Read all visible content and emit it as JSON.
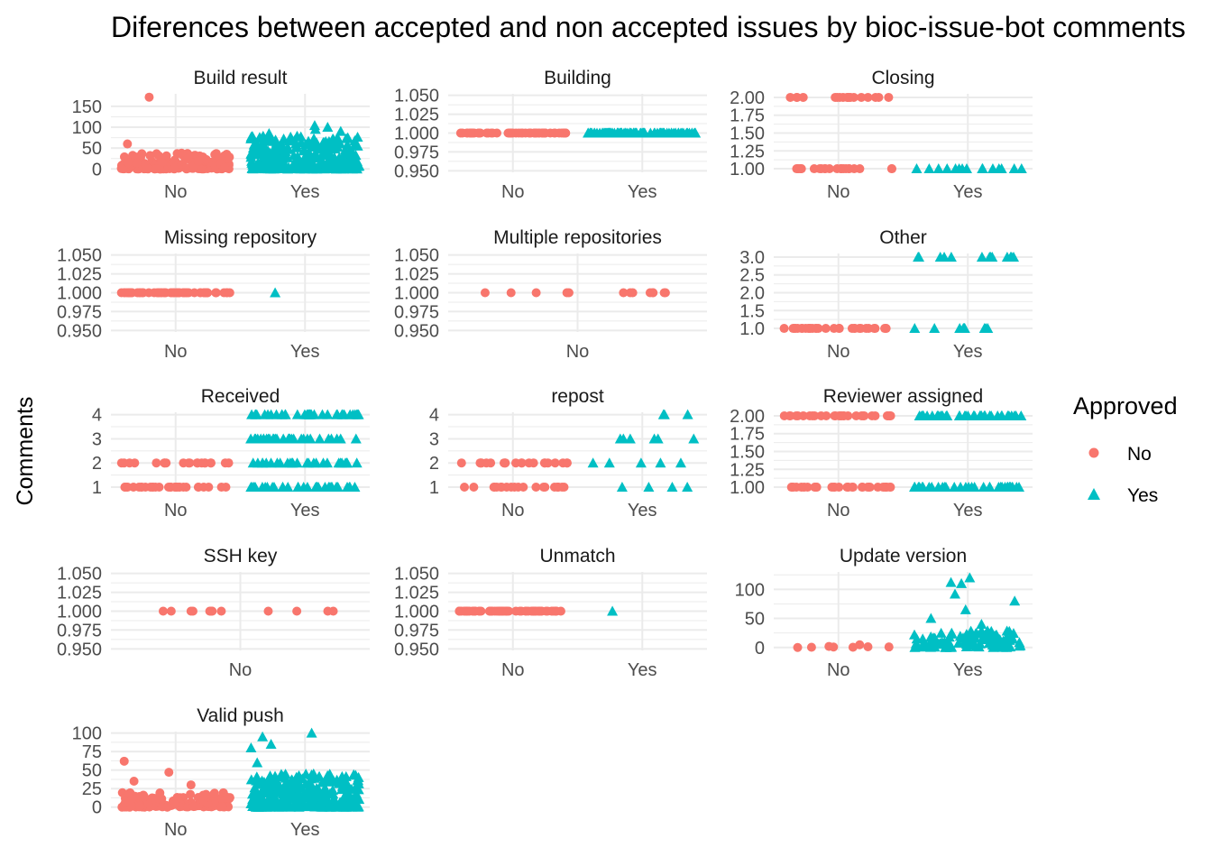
{
  "chart_data": {
    "type": "scatter",
    "title": "Diferences between accepted and non accepted issues by bioc-issue-bot comments",
    "ylabel": "Comments",
    "xlabel": "",
    "legend": {
      "title": "Approved",
      "position": "right",
      "entries": [
        {
          "label": "No",
          "shape": "circle",
          "color": "#F8766D"
        },
        {
          "label": "Yes",
          "shape": "triangle",
          "color": "#00BFC4"
        }
      ]
    },
    "grid": true,
    "facets": [
      {
        "title": "Build result",
        "categories": [
          "No",
          "Yes"
        ],
        "ylim": [
          -8,
          180
        ],
        "yticks": [
          0,
          50,
          100,
          150
        ],
        "minor": [
          25,
          75,
          125
        ],
        "tick_labels": [
          "0",
          "50",
          "100",
          "150"
        ],
        "series": {
          "No": {
            "range": [
              0,
              40
            ],
            "outliers": [
              60,
              172
            ],
            "n": 180
          },
          "Yes": {
            "range": [
              0,
              80
            ],
            "outliers": [
              85,
              90,
              95,
              100,
              104
            ],
            "n": 300
          }
        }
      },
      {
        "title": "Building",
        "categories": [
          "No",
          "Yes"
        ],
        "ylim": [
          0.948,
          1.052
        ],
        "yticks": [
          0.95,
          0.975,
          1.0,
          1.025,
          1.05
        ],
        "minor": [
          0.9625,
          0.9875,
          1.0125,
          1.0375
        ],
        "tick_labels": [
          "0.950",
          "0.975",
          "1.000",
          "1.025",
          "1.050"
        ],
        "series": {
          "No": {
            "values": [
              1
            ],
            "n": 60
          },
          "Yes": {
            "values": [
              1
            ],
            "n": 90
          }
        }
      },
      {
        "title": "Closing",
        "categories": [
          "No",
          "Yes"
        ],
        "ylim": [
          0.95,
          2.05
        ],
        "yticks": [
          1.0,
          1.25,
          1.5,
          1.75,
          2.0
        ],
        "minor": [
          1.125,
          1.375,
          1.625,
          1.875
        ],
        "tick_labels": [
          "1.00",
          "1.25",
          "1.50",
          "1.75",
          "2.00"
        ],
        "series": {
          "No": {
            "values": [
              1,
              2
            ],
            "n": 40
          },
          "Yes": {
            "values": [
              1
            ],
            "n": 14
          }
        }
      },
      {
        "title": "Missing repository",
        "categories": [
          "No",
          "Yes"
        ],
        "ylim": [
          0.948,
          1.052
        ],
        "yticks": [
          0.95,
          0.975,
          1.0,
          1.025,
          1.05
        ],
        "minor": [
          0.9625,
          0.9875,
          1.0125,
          1.0375
        ],
        "tick_labels": [
          "0.950",
          "0.975",
          "1.000",
          "1.025",
          "1.050"
        ],
        "series": {
          "No": {
            "values": [
              1
            ],
            "n": 60
          },
          "Yes": {
            "values": [
              1
            ],
            "n": 1
          }
        }
      },
      {
        "title": "Multiple repositories",
        "categories": [
          "No"
        ],
        "ylim": [
          0.948,
          1.052
        ],
        "yticks": [
          0.95,
          0.975,
          1.0,
          1.025,
          1.05
        ],
        "minor": [
          0.9625,
          0.9875,
          1.0125,
          1.0375
        ],
        "tick_labels": [
          "0.950",
          "0.975",
          "1.000",
          "1.025",
          "1.050"
        ],
        "series": {
          "No": {
            "values": [
              1
            ],
            "n": 12
          }
        }
      },
      {
        "title": "Other",
        "categories": [
          "No",
          "Yes"
        ],
        "ylim": [
          0.9,
          3.1
        ],
        "yticks": [
          1.0,
          1.5,
          2.0,
          2.5,
          3.0
        ],
        "minor": [
          1.25,
          1.75,
          2.25,
          2.75
        ],
        "tick_labels": [
          "1.0",
          "1.5",
          "2.0",
          "2.5",
          "3.0"
        ],
        "series": {
          "No": {
            "values": [
              1
            ],
            "n": 30
          },
          "Yes": {
            "values": [
              1,
              3
            ],
            "n": 20
          }
        }
      },
      {
        "title": "Received",
        "categories": [
          "No",
          "Yes"
        ],
        "ylim": [
          0.85,
          4.1
        ],
        "yticks": [
          1,
          2,
          3,
          4
        ],
        "minor": [
          1.5,
          2.5,
          3.5
        ],
        "tick_labels": [
          "1",
          "2",
          "3",
          "4"
        ],
        "series": {
          "No": {
            "values": [
              1,
              2
            ],
            "n": 50
          },
          "Yes": {
            "values": [
              1,
              2,
              3,
              4
            ],
            "n": 120
          }
        }
      },
      {
        "title": "repost",
        "categories": [
          "No",
          "Yes"
        ],
        "ylim": [
          0.85,
          4.1
        ],
        "yticks": [
          1,
          2,
          3,
          4
        ],
        "minor": [
          1.5,
          2.5,
          3.5
        ],
        "tick_labels": [
          "1",
          "2",
          "3",
          "4"
        ],
        "series": {
          "No": {
            "values": [
              1,
              2
            ],
            "n": 40
          },
          "Yes": {
            "values": [
              1,
              2,
              3,
              4
            ],
            "n": 14
          }
        }
      },
      {
        "title": "Reviewer assigned",
        "categories": [
          "No",
          "Yes"
        ],
        "ylim": [
          0.95,
          2.05
        ],
        "yticks": [
          1.0,
          1.25,
          1.5,
          1.75,
          2.0
        ],
        "minor": [
          1.125,
          1.375,
          1.625,
          1.875
        ],
        "tick_labels": [
          "1.00",
          "1.25",
          "1.50",
          "1.75",
          "2.00"
        ],
        "series": {
          "No": {
            "values": [
              1,
              2
            ],
            "n": 60
          },
          "Yes": {
            "values": [
              1,
              2
            ],
            "n": 70
          }
        }
      },
      {
        "title": "SSH key",
        "categories": [
          "No"
        ],
        "ylim": [
          0.948,
          1.052
        ],
        "yticks": [
          0.95,
          0.975,
          1.0,
          1.025,
          1.05
        ],
        "minor": [
          0.9625,
          0.9875,
          1.0125,
          1.0375
        ],
        "tick_labels": [
          "0.950",
          "0.975",
          "1.000",
          "1.025",
          "1.050"
        ],
        "series": {
          "No": {
            "values": [
              1
            ],
            "n": 12
          }
        }
      },
      {
        "title": "Unmatch",
        "categories": [
          "No",
          "Yes"
        ],
        "ylim": [
          0.948,
          1.052
        ],
        "yticks": [
          0.95,
          0.975,
          1.0,
          1.025,
          1.05
        ],
        "minor": [
          0.9625,
          0.9875,
          1.0125,
          1.0375
        ],
        "tick_labels": [
          "0.950",
          "0.975",
          "1.000",
          "1.025",
          "1.050"
        ],
        "series": {
          "No": {
            "values": [
              1
            ],
            "n": 60
          },
          "Yes": {
            "values": [
              1
            ],
            "n": 1
          }
        }
      },
      {
        "title": "Update version",
        "categories": [
          "No",
          "Yes"
        ],
        "ylim": [
          -5,
          130
        ],
        "yticks": [
          0,
          50,
          100
        ],
        "minor": [
          25,
          75,
          125
        ],
        "tick_labels": [
          "0",
          "50",
          "100"
        ],
        "series": {
          "No": {
            "range": [
              0,
              10
            ],
            "n": 8
          },
          "Yes": {
            "range": [
              0,
              30
            ],
            "outliers": [
              40,
              50,
              65,
              80,
              92,
              110,
              112,
              120
            ],
            "n": 110
          }
        }
      },
      {
        "title": "Valid push",
        "categories": [
          "No",
          "Yes"
        ],
        "ylim": [
          -4,
          102
        ],
        "yticks": [
          0,
          25,
          50,
          75,
          100
        ],
        "minor": [
          12.5,
          37.5,
          62.5,
          87.5
        ],
        "tick_labels": [
          "0",
          "25",
          "50",
          "75",
          "100"
        ],
        "series": {
          "No": {
            "range": [
              0,
              20
            ],
            "outliers": [
              30,
              35,
              47,
              62
            ],
            "n": 160
          },
          "Yes": {
            "range": [
              0,
              45
            ],
            "outliers": [
              60,
              80,
              85,
              95,
              100
            ],
            "n": 300
          }
        }
      }
    ]
  }
}
